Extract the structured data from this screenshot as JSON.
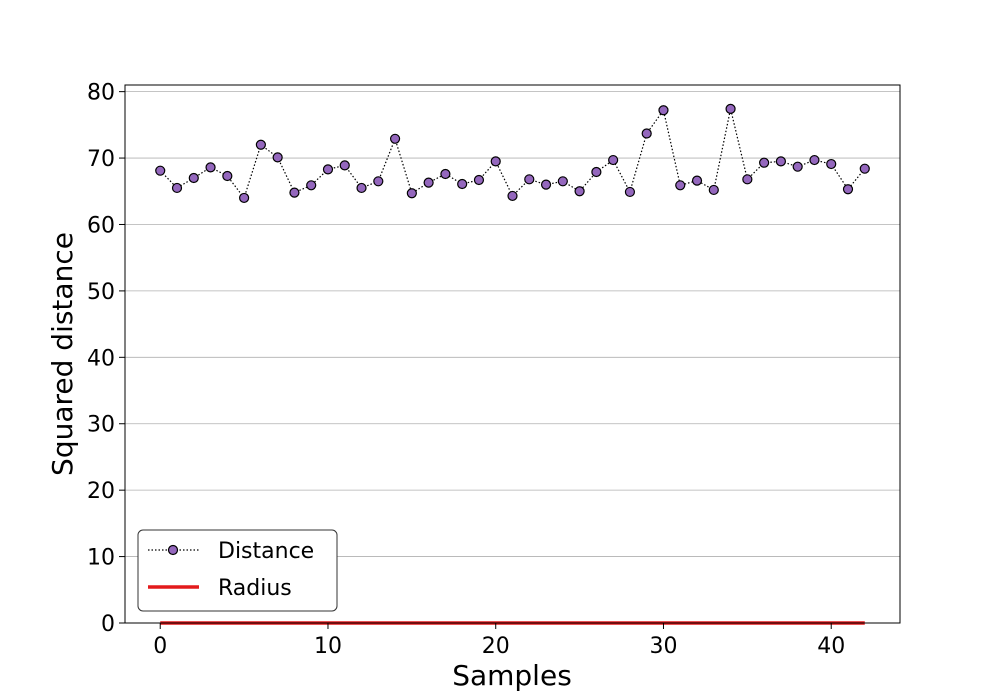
{
  "chart_data": {
    "type": "line",
    "title": "",
    "xlabel": "Samples",
    "ylabel": "Squared distance",
    "xlim": [
      -2.1,
      44.1
    ],
    "ylim": [
      0,
      81
    ],
    "xticks": [
      0,
      10,
      20,
      30,
      40
    ],
    "yticks": [
      0,
      10,
      20,
      30,
      40,
      50,
      60,
      70,
      80
    ],
    "grid": "y",
    "legend_position": "lower-left",
    "series": [
      {
        "name": "Distance",
        "style": "dotted line with circle markers",
        "line_color": "#000000",
        "marker_color": "#9467bd",
        "x": [
          0,
          1,
          2,
          3,
          4,
          5,
          6,
          7,
          8,
          9,
          10,
          11,
          12,
          13,
          14,
          15,
          16,
          17,
          18,
          19,
          20,
          21,
          22,
          23,
          24,
          25,
          26,
          27,
          28,
          29,
          30,
          31,
          32,
          33,
          34,
          35,
          36,
          37,
          38,
          39,
          40,
          41,
          42
        ],
        "values": [
          68.1,
          65.5,
          67.0,
          68.6,
          67.3,
          64.0,
          72.0,
          70.1,
          64.8,
          65.9,
          68.3,
          68.9,
          65.5,
          66.5,
          72.9,
          64.7,
          66.3,
          67.6,
          66.1,
          66.7,
          69.5,
          64.3,
          66.8,
          66.0,
          66.5,
          65.0,
          67.9,
          69.7,
          64.9,
          73.7,
          77.2,
          65.9,
          66.6,
          65.2,
          77.4,
          66.8,
          69.3,
          69.5,
          68.7,
          69.7,
          69.1,
          65.3,
          68.4
        ]
      },
      {
        "name": "Radius",
        "style": "solid line",
        "line_color": "#e31a1c",
        "x": [
          0,
          42
        ],
        "values": [
          0,
          0
        ]
      }
    ]
  }
}
